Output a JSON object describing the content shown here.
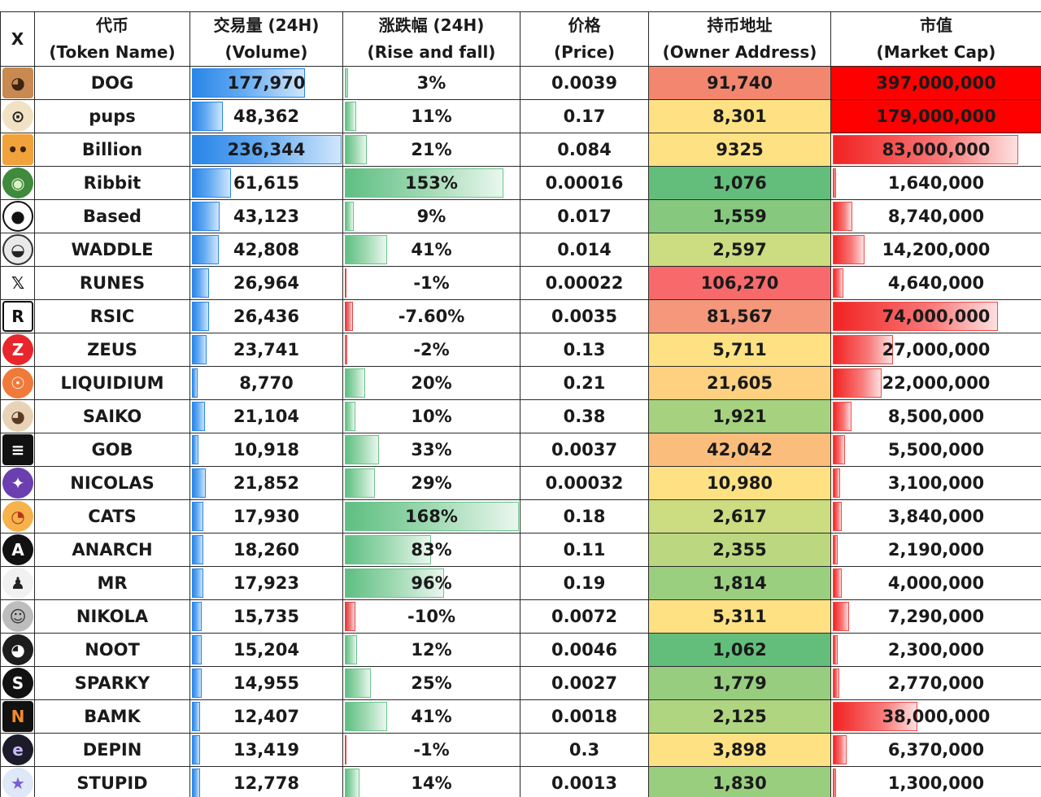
{
  "chart_data": {
    "type": "table",
    "columns": [
      {
        "line1": "X",
        "line2": ""
      },
      {
        "line1": "代币",
        "line2": "(Token Name)"
      },
      {
        "line1": "交易量 (24H)",
        "line2": "(Volume)"
      },
      {
        "line1": "涨跌幅 (24H)",
        "line2": "(Rise and fall)"
      },
      {
        "line1": "价格",
        "line2": "(Price)"
      },
      {
        "line1": "持币地址",
        "line2": "(Owner Address)"
      },
      {
        "line1": "市值",
        "line2": "(Market Cap)"
      }
    ],
    "rows": [
      {
        "name": "DOG",
        "icon": "dog-face-icon",
        "volume": 177970,
        "volume_label": "177,970",
        "change": 3,
        "change_label": "3%",
        "price": "0.0039",
        "owners": 91740,
        "owners_label": "91,740",
        "owners_color": "#f3866f",
        "market_cap": 397000000,
        "market_cap_label": "397,000,000"
      },
      {
        "name": "pups",
        "icon": "pup-face-icon",
        "volume": 48362,
        "volume_label": "48,362",
        "change": 11,
        "change_label": "11%",
        "price": "0.17",
        "owners": 8301,
        "owners_label": "8,301",
        "owners_color": "#fde183",
        "market_cap": 179000000,
        "market_cap_label": "179,000,000"
      },
      {
        "name": "Billion",
        "icon": "billion-face-icon",
        "volume": 236344,
        "volume_label": "236,344",
        "change": 21,
        "change_label": "21%",
        "price": "0.084",
        "owners": 9325,
        "owners_label": "9325",
        "owners_color": "#fde183",
        "market_cap": 83000000,
        "market_cap_label": "83,000,000"
      },
      {
        "name": "Ribbit",
        "icon": "frog-icon",
        "volume": 61615,
        "volume_label": "61,615",
        "change": 153,
        "change_label": "153%",
        "price": "0.00016",
        "owners": 1076,
        "owners_label": "1,076",
        "owners_color": "#63be7b",
        "market_cap": 1640000,
        "market_cap_label": "1,640,000"
      },
      {
        "name": "Based",
        "icon": "panda-icon",
        "volume": 43123,
        "volume_label": "43,123",
        "change": 9,
        "change_label": "9%",
        "price": "0.017",
        "owners": 1559,
        "owners_label": "1,559",
        "owners_color": "#86c97e",
        "market_cap": 8740000,
        "market_cap_label": "8,740,000"
      },
      {
        "name": "WADDLE",
        "icon": "penguin-icon",
        "volume": 42808,
        "volume_label": "42,808",
        "change": 41,
        "change_label": "41%",
        "price": "0.014",
        "owners": 2597,
        "owners_label": "2,597",
        "owners_color": "#cbdc81",
        "market_cap": 14200000,
        "market_cap_label": "14,200,000"
      },
      {
        "name": "RUNES",
        "icon": "x-logo-icon",
        "volume": 26964,
        "volume_label": "26,964",
        "change": -1,
        "change_label": "-1%",
        "price": "0.00022",
        "owners": 106270,
        "owners_label": "106,270",
        "owners_color": "#f8696b",
        "market_cap": 4640000,
        "market_cap_label": "4,640,000"
      },
      {
        "name": "RSIC",
        "icon": "rsic-logo-icon",
        "volume": 26436,
        "volume_label": "26,436",
        "change": -7.6,
        "change_label": "-7.60%",
        "price": "0.0035",
        "owners": 81567,
        "owners_label": "81,567",
        "owners_color": "#f5977a",
        "market_cap": 74000000,
        "market_cap_label": "74,000,000"
      },
      {
        "name": "ZEUS",
        "icon": "zeus-logo-icon",
        "volume": 23741,
        "volume_label": "23,741",
        "change": -2,
        "change_label": "-2%",
        "price": "0.13",
        "owners": 5711,
        "owners_label": "5,711",
        "owners_color": "#fde183",
        "market_cap": 27000000,
        "market_cap_label": "27,000,000"
      },
      {
        "name": "LIQUIDIUM",
        "icon": "liquidium-logo-icon",
        "volume": 8770,
        "volume_label": "8,770",
        "change": 20,
        "change_label": "20%",
        "price": "0.21",
        "owners": 21605,
        "owners_label": "21,605",
        "owners_color": "#fdd17f",
        "market_cap": 22000000,
        "market_cap_label": "22,000,000"
      },
      {
        "name": "SAIKO",
        "icon": "hamster-icon",
        "volume": 21104,
        "volume_label": "21,104",
        "change": 10,
        "change_label": "10%",
        "price": "0.38",
        "owners": 1921,
        "owners_label": "1,921",
        "owners_color": "#a6d27f",
        "market_cap": 8500000,
        "market_cap_label": "8,500,000"
      },
      {
        "name": "GOB",
        "icon": "gob-logo-icon",
        "volume": 10918,
        "volume_label": "10,918",
        "change": 33,
        "change_label": "33%",
        "price": "0.0037",
        "owners": 42042,
        "owners_label": "42,042",
        "owners_color": "#fbbd7b",
        "market_cap": 5500000,
        "market_cap_label": "5,500,000"
      },
      {
        "name": "NICOLAS",
        "icon": "nicolas-logo-icon",
        "volume": 21852,
        "volume_label": "21,852",
        "change": 29,
        "change_label": "29%",
        "price": "0.00032",
        "owners": 10980,
        "owners_label": "10,980",
        "owners_color": "#fde183",
        "market_cap": 3100000,
        "market_cap_label": "3,100,000"
      },
      {
        "name": "CATS",
        "icon": "cats-logo-icon",
        "volume": 17930,
        "volume_label": "17,930",
        "change": 168,
        "change_label": "168%",
        "price": "0.18",
        "owners": 2617,
        "owners_label": "2,617",
        "owners_color": "#cbdc81",
        "market_cap": 3840000,
        "market_cap_label": "3,840,000"
      },
      {
        "name": "ANARCH",
        "icon": "anarchy-a-icon",
        "volume": 18260,
        "volume_label": "18,260",
        "change": 83,
        "change_label": "83%",
        "price": "0.11",
        "owners": 2355,
        "owners_label": "2,355",
        "owners_color": "#bbd881",
        "market_cap": 2190000,
        "market_cap_label": "2,190,000"
      },
      {
        "name": "MR",
        "icon": "suited-man-icon",
        "volume": 17923,
        "volume_label": "17,923",
        "change": 96,
        "change_label": "96%",
        "price": "0.19",
        "owners": 1814,
        "owners_label": "1,814",
        "owners_color": "#9acf7f",
        "market_cap": 4000000,
        "market_cap_label": "4,000,000"
      },
      {
        "name": "NIKOLA",
        "icon": "portrait-icon",
        "volume": 15735,
        "volume_label": "15,735",
        "change": -10,
        "change_label": "-10%",
        "price": "0.0072",
        "owners": 5311,
        "owners_label": "5,311",
        "owners_color": "#fde183",
        "market_cap": 7290000,
        "market_cap_label": "7,290,000"
      },
      {
        "name": "NOOT",
        "icon": "pingu-icon",
        "volume": 15204,
        "volume_label": "15,204",
        "change": 12,
        "change_label": "12%",
        "price": "0.0046",
        "owners": 1062,
        "owners_label": "1,062",
        "owners_color": "#63be7b",
        "market_cap": 2300000,
        "market_cap_label": "2,300,000"
      },
      {
        "name": "SPARKY",
        "icon": "sparky-s-icon",
        "volume": 14955,
        "volume_label": "14,955",
        "change": 25,
        "change_label": "25%",
        "price": "0.0027",
        "owners": 1779,
        "owners_label": "1,779",
        "owners_color": "#96cd7e",
        "market_cap": 2770000,
        "market_cap_label": "2,770,000"
      },
      {
        "name": "BAMK",
        "icon": "bamk-logo-icon",
        "volume": 12407,
        "volume_label": "12,407",
        "change": 41,
        "change_label": "41%",
        "price": "0.0018",
        "owners": 2125,
        "owners_label": "2,125",
        "owners_color": "#b0d580",
        "market_cap": 38000000,
        "market_cap_label": "38,000,000"
      },
      {
        "name": "DEPIN",
        "icon": "depin-logo-icon",
        "volume": 13419,
        "volume_label": "13,419",
        "change": -1,
        "change_label": "-1%",
        "price": "0.3",
        "owners": 3898,
        "owners_label": "3,898",
        "owners_color": "#fde183",
        "market_cap": 6370000,
        "market_cap_label": "6,370,000"
      },
      {
        "name": "STUPID",
        "icon": "rainbow-cat-icon",
        "volume": 12778,
        "volume_label": "12,778",
        "change": 14,
        "change_label": "14%",
        "price": "0.0013",
        "owners": 1830,
        "owners_label": "1,830",
        "owners_color": "#9ace7f",
        "market_cap": 1300000,
        "market_cap_label": "1,300,000"
      }
    ]
  }
}
